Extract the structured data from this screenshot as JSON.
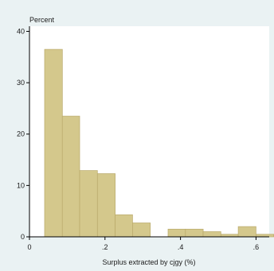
{
  "chart_data": {
    "type": "bar",
    "title": "",
    "xlabel": "Surplus extracted by cjgy (%)",
    "ylabel": "Percent",
    "xlim": [
      0,
      0.635
    ],
    "ylim": [
      0,
      41
    ],
    "x_ticks": [
      {
        "value": 0,
        "label": "0"
      },
      {
        "value": 0.2,
        "label": ".2"
      },
      {
        "value": 0.4,
        "label": ".4"
      },
      {
        "value": 0.6,
        "label": ".6"
      }
    ],
    "y_ticks": [
      {
        "value": 0,
        "label": "0"
      },
      {
        "value": 10,
        "label": "10"
      },
      {
        "value": 20,
        "label": "20"
      },
      {
        "value": 30,
        "label": "30"
      },
      {
        "value": 40,
        "label": "40"
      }
    ],
    "bins": [
      {
        "start": 0.04,
        "end": 0.087,
        "value": 36.5
      },
      {
        "start": 0.087,
        "end": 0.133,
        "value": 23.5
      },
      {
        "start": 0.133,
        "end": 0.18,
        "value": 12.9
      },
      {
        "start": 0.18,
        "end": 0.227,
        "value": 12.3
      },
      {
        "start": 0.227,
        "end": 0.273,
        "value": 4.3
      },
      {
        "start": 0.273,
        "end": 0.32,
        "value": 2.7
      },
      {
        "start": 0.32,
        "end": 0.367,
        "value": 0
      },
      {
        "start": 0.367,
        "end": 0.413,
        "value": 1.5
      },
      {
        "start": 0.413,
        "end": 0.46,
        "value": 1.5
      },
      {
        "start": 0.46,
        "end": 0.507,
        "value": 1.0
      },
      {
        "start": 0.507,
        "end": 0.553,
        "value": 0.5
      },
      {
        "start": 0.553,
        "end": 0.6,
        "value": 2.0
      },
      {
        "start": 0.6,
        "end": 0.647,
        "value": 0.5
      }
    ],
    "grid": false,
    "colors": {
      "background": "#eaf2f3",
      "plot_background": "#ffffff",
      "bar_fill": "#d4c88c",
      "bar_edge": "#b9a96a"
    }
  }
}
